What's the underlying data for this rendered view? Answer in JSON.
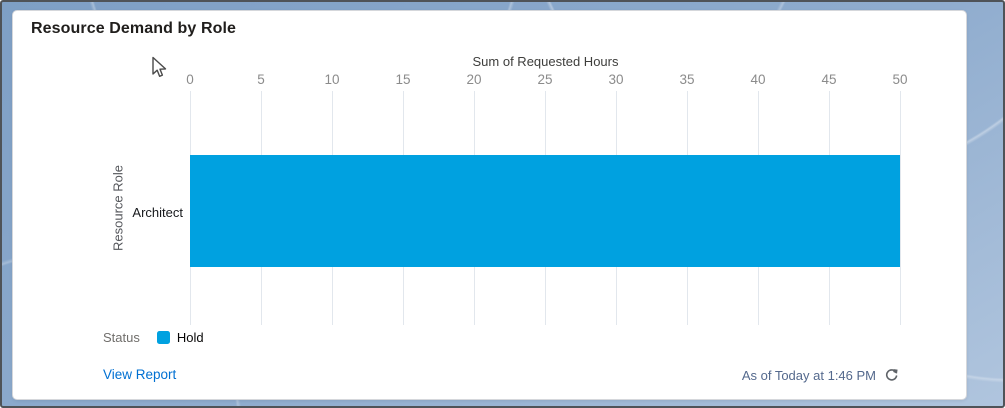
{
  "card": {
    "title": "Resource Demand by Role"
  },
  "chart_data": {
    "type": "bar",
    "orientation": "horizontal",
    "title": "Resource Demand by Role",
    "xlabel": "Sum of Requested Hours",
    "ylabel": "Resource Role",
    "categories": [
      "Architect"
    ],
    "series": [
      {
        "name": "Hold",
        "values": [
          50
        ],
        "color": "#00A1E0"
      }
    ],
    "xlim": [
      0,
      50
    ],
    "xticks": [
      0,
      5,
      10,
      15,
      20,
      25,
      30,
      35,
      40,
      45,
      50
    ],
    "grid": true,
    "legend_title": "Status",
    "legend_position": "bottom-left"
  },
  "legend": {
    "title": "Status",
    "items": [
      {
        "label": "Hold",
        "color": "#00A1E0"
      }
    ]
  },
  "footer": {
    "view_report": "View Report",
    "as_of": "As of Today at 1:46 PM"
  },
  "icons": {
    "refresh": "refresh-icon",
    "cursor": "mouse-cursor"
  },
  "colors": {
    "bar": "#00A1E0",
    "link": "#0070D2",
    "timestamp": "#54698D",
    "gridline": "#E2E7ED",
    "background": "#7E9FC5"
  }
}
